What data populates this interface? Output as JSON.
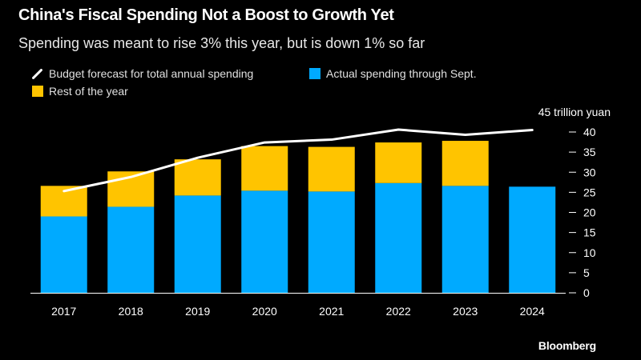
{
  "title": "China's Fiscal Spending Not a Boost to Growth Yet",
  "subtitle": "Spending was meant to rise 3% this year, but is down 1% so far",
  "legend": {
    "forecast": "Budget forecast for total annual spending",
    "actual": "Actual spending through Sept.",
    "rest": "Rest of the year"
  },
  "brand": "Bloomberg",
  "colors": {
    "actual": "#00aaff",
    "rest": "#ffc400",
    "forecast": "#ffffff",
    "axis": "#ffffff"
  },
  "chart_data": {
    "type": "bar",
    "stacked": true,
    "categories": [
      "2017",
      "2018",
      "2019",
      "2020",
      "2021",
      "2022",
      "2023",
      "2024"
    ],
    "series": [
      {
        "name": "Actual spending through Sept.",
        "values": [
          19.0,
          21.4,
          24.2,
          25.4,
          25.2,
          27.3,
          26.6,
          26.4
        ]
      },
      {
        "name": "Rest of the year",
        "values": [
          7.6,
          8.8,
          9.0,
          11.1,
          11.1,
          10.1,
          11.2,
          null
        ]
      }
    ],
    "line": {
      "name": "Budget forecast for total annual spending",
      "values": [
        25.3,
        28.8,
        33.6,
        37.4,
        38.1,
        40.6,
        39.3,
        40.5
      ]
    },
    "y_ticks": [
      0,
      5,
      10,
      15,
      20,
      25,
      30,
      35,
      40
    ],
    "ylim": [
      0,
      45
    ],
    "y_unit_label": "45 trillion yuan",
    "xlabel": "",
    "ylabel": ""
  }
}
